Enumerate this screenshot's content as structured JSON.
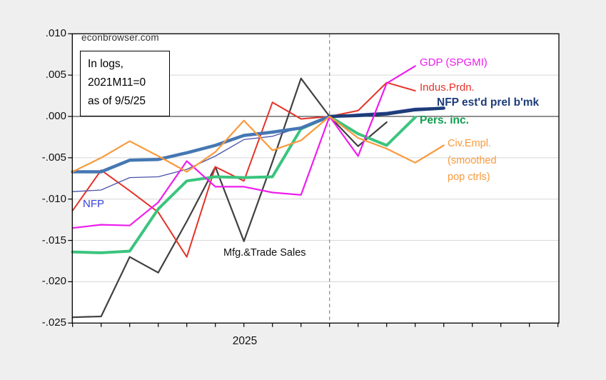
{
  "page": {
    "background": "#efefef",
    "plot_background": "#ffffff",
    "frame_color": "#000000",
    "gridline_color": "#d6d6d6",
    "zero_line_color": "#222222",
    "dashed_line_color": "#888888"
  },
  "branding": {
    "site": "econbrowser.com"
  },
  "note_box": {
    "lines": [
      "In logs,",
      "2021M11=0",
      "as of 9/5/25"
    ]
  },
  "y_axis": {
    "labels": [
      ".010",
      ".005",
      ".000",
      "-.005",
      "-.010",
      "-.015",
      "-.020",
      "-.025"
    ],
    "values": [
      0.01,
      0.005,
      0.0,
      -0.005,
      -0.01,
      -0.015,
      -0.02,
      -0.025
    ]
  },
  "x_axis": {
    "year_label": "2025"
  },
  "annotations": {
    "nfp_label": "NFP",
    "mfg_label": "Mfg.&Trade Sales"
  },
  "series_labels": {
    "gdp": "GDP (SPGMI)",
    "ip": "Indus.Prdn.",
    "nfpb": "NFP est'd prel b'mk",
    "pi": "Pers. inc.",
    "ce_lines": [
      "Civ.Empl.",
      "(smoothed",
      "pop ctrls)"
    ]
  },
  "chart_data": {
    "type": "line",
    "title": "",
    "normalization_note": "In logs, 2021M11=0, as of 9/5/25",
    "xlabel": "2025",
    "ylabel": "",
    "ylim": [
      -0.025,
      0.01
    ],
    "grid": true,
    "legend_position": "direct-labels-right",
    "x_months": [
      "2024M07",
      "2024M08",
      "2024M09",
      "2024M10",
      "2024M11",
      "2024M12",
      "2025M01",
      "2025M02",
      "2025M03",
      "2025M04",
      "2025M05",
      "2025M06",
      "2025M07",
      "2025M08",
      "2025M09",
      "2025M10",
      "2025M11",
      "2025M12"
    ],
    "vline_month": "2025M04",
    "vline_index": 9,
    "series": [
      {
        "name": "Mfg.&Trade Sales",
        "color": "#404040",
        "width": 2.2,
        "values": [
          -0.0243,
          -0.0242,
          -0.017,
          -0.0189,
          -0.0127,
          -0.0061,
          -0.0151,
          -0.0055,
          0.0046,
          0,
          -0.0036,
          -0.0007,
          null,
          null,
          null,
          null,
          null,
          null
        ]
      },
      {
        "name": "Indus.Prdn.",
        "color": "#e53228",
        "width": 2.0,
        "values": [
          -0.0114,
          -0.0065,
          -0.009,
          -0.0116,
          -0.017,
          -0.0061,
          -0.0078,
          0.0017,
          -0.0003,
          0,
          0.0007,
          0.0041,
          0.0031,
          null,
          null,
          null,
          null,
          null
        ]
      },
      {
        "name": "Pers. inc.",
        "color": "#3bc47e",
        "width": 4.0,
        "values": [
          -0.0164,
          -0.0165,
          -0.0163,
          -0.0112,
          -0.0078,
          -0.0073,
          -0.0074,
          -0.0073,
          -0.0015,
          0,
          -0.0021,
          -0.0035,
          -0.0001,
          null,
          null,
          null,
          null,
          null
        ]
      },
      {
        "name": "NFP",
        "color": "#4953ad",
        "width": 1.3,
        "values": [
          -0.0091,
          -0.0089,
          -0.0074,
          -0.0073,
          -0.0064,
          -0.0048,
          -0.0028,
          -0.0024,
          -0.0013,
          0,
          0.0003,
          0.0005,
          0.001,
          0.0011,
          null,
          null,
          null,
          null
        ]
      },
      {
        "name": "NFP est'd prel b'mk",
        "color": "#1d3c78",
        "width": 4.5,
        "segments": [
          {
            "start": 0,
            "end": 9,
            "color": "#4577b3"
          },
          {
            "start": 9,
            "end": 13,
            "color": "#1d3c78"
          }
        ],
        "values": [
          -0.0067,
          -0.0067,
          -0.0053,
          -0.0052,
          -0.0044,
          -0.0035,
          -0.0023,
          -0.0019,
          -0.0014,
          0,
          0.0001,
          0.0003,
          0.0008,
          0.001,
          null,
          null,
          null,
          null
        ]
      },
      {
        "name": "GDP (SPGMI)",
        "color": "#ee1dee",
        "width": 2.2,
        "values": [
          -0.0135,
          -0.0131,
          -0.0132,
          -0.0104,
          -0.0054,
          -0.0085,
          -0.0085,
          -0.0092,
          -0.0095,
          0,
          -0.0048,
          0.004,
          0.0061,
          null,
          null,
          null,
          null,
          null
        ]
      },
      {
        "name": "Civ.Empl. (smoothed pop ctrls)",
        "color": "#f89a3e",
        "width": 2.2,
        "values": [
          -0.0067,
          -0.005,
          -0.003,
          -0.0048,
          -0.0067,
          -0.0043,
          -0.0005,
          -0.0041,
          -0.0029,
          0,
          -0.0026,
          -0.0039,
          -0.0056,
          -0.0035,
          null,
          null,
          null,
          null
        ]
      }
    ]
  }
}
